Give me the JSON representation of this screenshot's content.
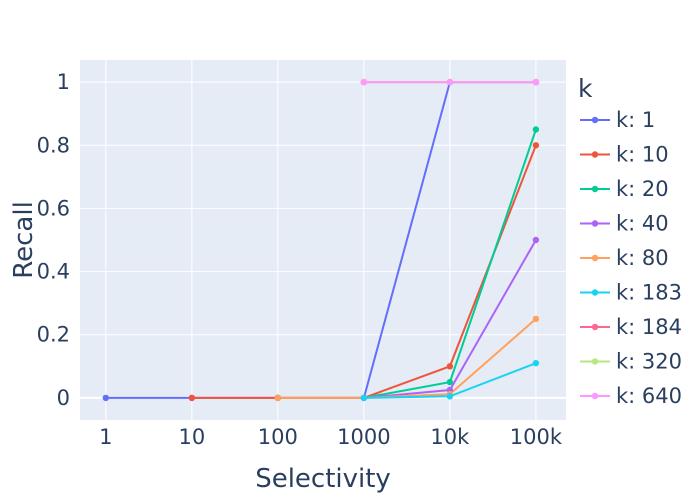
{
  "chart_data": {
    "type": "line",
    "xlabel": "Selectivity",
    "ylabel": "Recall",
    "x_scale": "log",
    "x": [
      1,
      10,
      100,
      1000,
      10000,
      100000
    ],
    "x_tick_labels": [
      "1",
      "10",
      "100",
      "1000",
      "10k",
      "100k"
    ],
    "y_ticks": [
      0,
      0.2,
      0.4,
      0.6,
      0.8,
      1
    ],
    "y_tick_labels": [
      "0",
      "0.2",
      "0.4",
      "0.6",
      "0.8",
      "1"
    ],
    "ylim": [
      -0.07,
      1.07
    ],
    "grid": true,
    "legend_title": "k",
    "legend_position": "right",
    "series": [
      {
        "name": "k: 1",
        "color": "#636efa",
        "points": [
          [
            1,
            0
          ],
          [
            10,
            0
          ],
          [
            100,
            0
          ],
          [
            1000,
            0
          ],
          [
            10000,
            1
          ],
          [
            100000,
            1
          ]
        ]
      },
      {
        "name": "k: 10",
        "color": "#EF553B",
        "points": [
          [
            10,
            0
          ],
          [
            100,
            0
          ],
          [
            1000,
            0
          ],
          [
            10000,
            0.1
          ],
          [
            100000,
            0.8
          ]
        ]
      },
      {
        "name": "k: 20",
        "color": "#00cc96",
        "points": [
          [
            1000,
            0
          ],
          [
            10000,
            0.05
          ],
          [
            100000,
            0.85
          ]
        ]
      },
      {
        "name": "k: 40",
        "color": "#ab63fa",
        "points": [
          [
            1000,
            0
          ],
          [
            10000,
            0.025
          ],
          [
            100000,
            0.5
          ]
        ]
      },
      {
        "name": "k: 80",
        "color": "#FFA15A",
        "points": [
          [
            100,
            0
          ],
          [
            1000,
            0
          ],
          [
            10000,
            0.012
          ],
          [
            100000,
            0.25
          ]
        ]
      },
      {
        "name": "k: 183",
        "color": "#19d3f3",
        "points": [
          [
            1000,
            0
          ],
          [
            10000,
            0.005
          ],
          [
            100000,
            0.11
          ]
        ]
      },
      {
        "name": "k: 184",
        "color": "#FF6692",
        "points": [
          [
            1000,
            1
          ],
          [
            10000,
            1
          ],
          [
            100000,
            1
          ]
        ]
      },
      {
        "name": "k: 320",
        "color": "#B6E880",
        "points": [
          [
            1000,
            1
          ],
          [
            10000,
            1
          ],
          [
            100000,
            1
          ]
        ]
      },
      {
        "name": "k: 640",
        "color": "#FF97FF",
        "points": [
          [
            1000,
            1
          ],
          [
            10000,
            1
          ],
          [
            100000,
            1
          ]
        ]
      }
    ]
  }
}
